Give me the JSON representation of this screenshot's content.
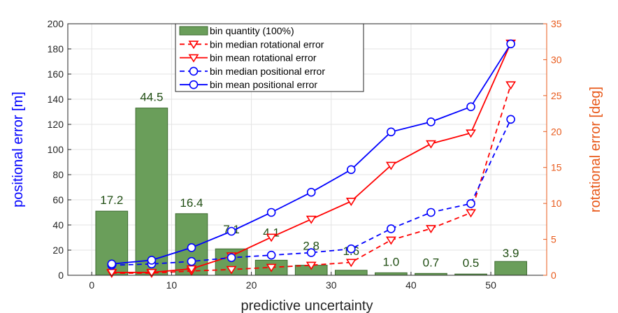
{
  "chart_data": {
    "type": "bar+line",
    "xlabel": "predictive uncertainty",
    "ylabel_left": "positional error [m]",
    "ylabel_right": "rotational error [deg]",
    "xlim": [
      -3,
      57
    ],
    "ylim_left": [
      0,
      200
    ],
    "ylim_right": [
      0,
      35
    ],
    "xticks": [
      0,
      10,
      20,
      30,
      40,
      50
    ],
    "yticks_left": [
      0,
      20,
      40,
      60,
      80,
      100,
      120,
      140,
      160,
      180,
      200
    ],
    "yticks_right": [
      0,
      5,
      10,
      15,
      20,
      25,
      30,
      35
    ],
    "grid": true,
    "legend_position": "top-center",
    "colors": {
      "bars": "#6a9e5a",
      "bars_edge": "#3e6b31",
      "rotational": "#ff0000",
      "positional": "#0000ff",
      "right_axis": "#e8591a",
      "bar_labels": "#1f4d12"
    },
    "bins": {
      "x": [
        2.5,
        7.5,
        12.5,
        17.5,
        22.5,
        27.5,
        32.5,
        37.5,
        42.5,
        47.5,
        52.5
      ],
      "bar_heights_left_units": [
        51,
        133,
        49,
        21,
        12,
        8,
        4,
        2,
        1.5,
        1,
        11
      ],
      "bar_labels": [
        "17.2",
        "44.5",
        "16.4",
        "7.1",
        "4.1",
        "2.8",
        "1.6",
        "1.0",
        "0.7",
        "0.5",
        "3.9"
      ]
    },
    "series": [
      {
        "name": "bin quantity (100%)",
        "kind": "bar",
        "color": "#6a9e5a"
      },
      {
        "name": "bin median rotational error",
        "kind": "line",
        "axis": "right",
        "style": "dashed",
        "marker": "triangle-down",
        "color": "#ff0000",
        "values": [
          0.3,
          0.3,
          0.6,
          0.8,
          1.1,
          1.4,
          1.8,
          4.9,
          6.5,
          8.7,
          26.5
        ]
      },
      {
        "name": "bin mean rotational error",
        "kind": "line",
        "axis": "right",
        "style": "solid",
        "marker": "triangle-down",
        "color": "#ff0000",
        "values": [
          0.4,
          0.4,
          0.9,
          2.7,
          5.3,
          7.8,
          10.3,
          15.3,
          18.3,
          19.8,
          32.3
        ]
      },
      {
        "name": "bin median positional error",
        "kind": "line",
        "axis": "left",
        "style": "dashed",
        "marker": "circle",
        "color": "#0000ff",
        "values": [
          8,
          9,
          11,
          14,
          16,
          18,
          21,
          37,
          50,
          57,
          124
        ]
      },
      {
        "name": "bin mean positional error",
        "kind": "line",
        "axis": "left",
        "style": "solid",
        "marker": "circle",
        "color": "#0000ff",
        "values": [
          9,
          12,
          22,
          35,
          50,
          66,
          84,
          114,
          122,
          134,
          184
        ]
      }
    ]
  }
}
